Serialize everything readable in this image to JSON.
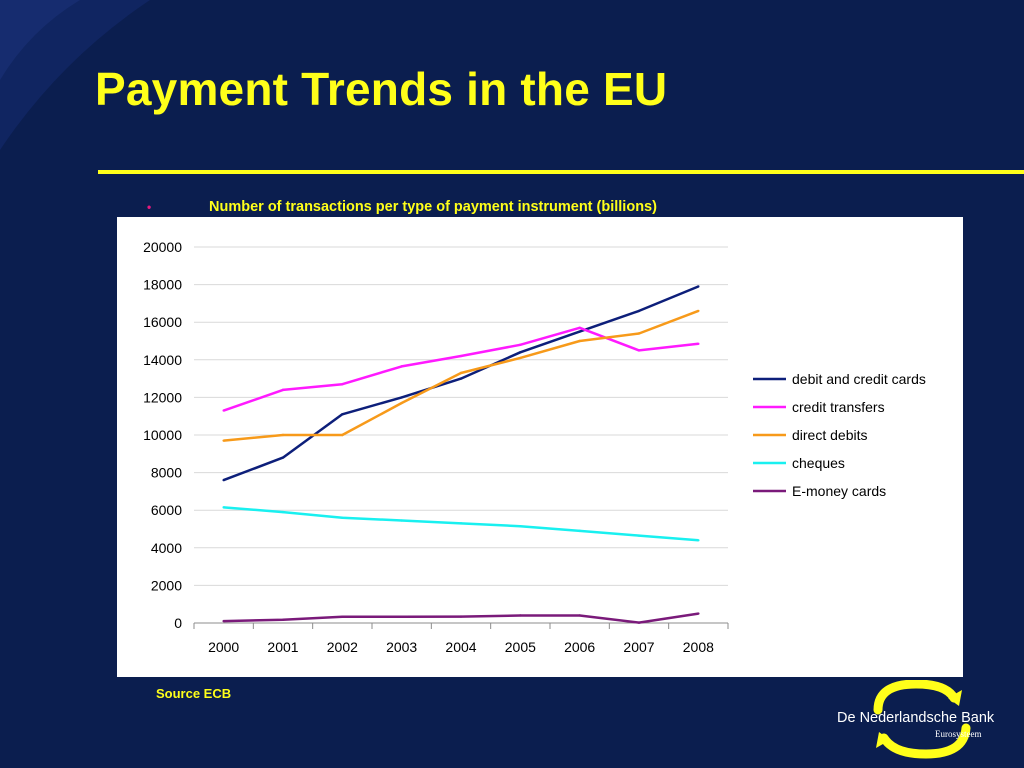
{
  "slide": {
    "title": "Payment Trends in the EU",
    "bullet": "Number of transactions per type of payment instrument (billions)",
    "source": "Source ECB",
    "logo_name": "De Nederlandsche Bank",
    "logo_sub": "Eurosysteem",
    "colors": {
      "background": "#0b1e4f",
      "title": "#ffff1a",
      "bullet_dot": "#e6197d"
    }
  },
  "chart_data": {
    "type": "line",
    "categories": [
      "2000",
      "2001",
      "2002",
      "2003",
      "2004",
      "2005",
      "2006",
      "2007",
      "2008"
    ],
    "ylim": [
      0,
      20000
    ],
    "yticks": [
      "0",
      "2000",
      "4000",
      "6000",
      "8000",
      "10000",
      "12000",
      "14000",
      "16000",
      "18000",
      "20000"
    ],
    "grid": true,
    "legend_position": "right",
    "series": [
      {
        "name": "debit and credit cards",
        "color": "#0d1f7a",
        "values": [
          7600,
          8800,
          11100,
          12000,
          13000,
          14400,
          15500,
          16600,
          17900
        ]
      },
      {
        "name": "credit transfers",
        "color": "#ff1aff",
        "values": [
          11300,
          12400,
          12700,
          13650,
          14200,
          14800,
          15700,
          14500,
          14850
        ]
      },
      {
        "name": "direct debits",
        "color": "#f79a1a",
        "values": [
          9700,
          10000,
          10000,
          11700,
          13300,
          14100,
          15000,
          15400,
          16600
        ]
      },
      {
        "name": "cheques",
        "color": "#19f0f0",
        "values": [
          6150,
          5900,
          5600,
          5450,
          5300,
          5150,
          4900,
          4650,
          4400
        ]
      },
      {
        "name": "E-money cards",
        "color": "#7a1a7a",
        "values": [
          100,
          170,
          330,
          330,
          340,
          400,
          400,
          20,
          500
        ]
      }
    ]
  }
}
